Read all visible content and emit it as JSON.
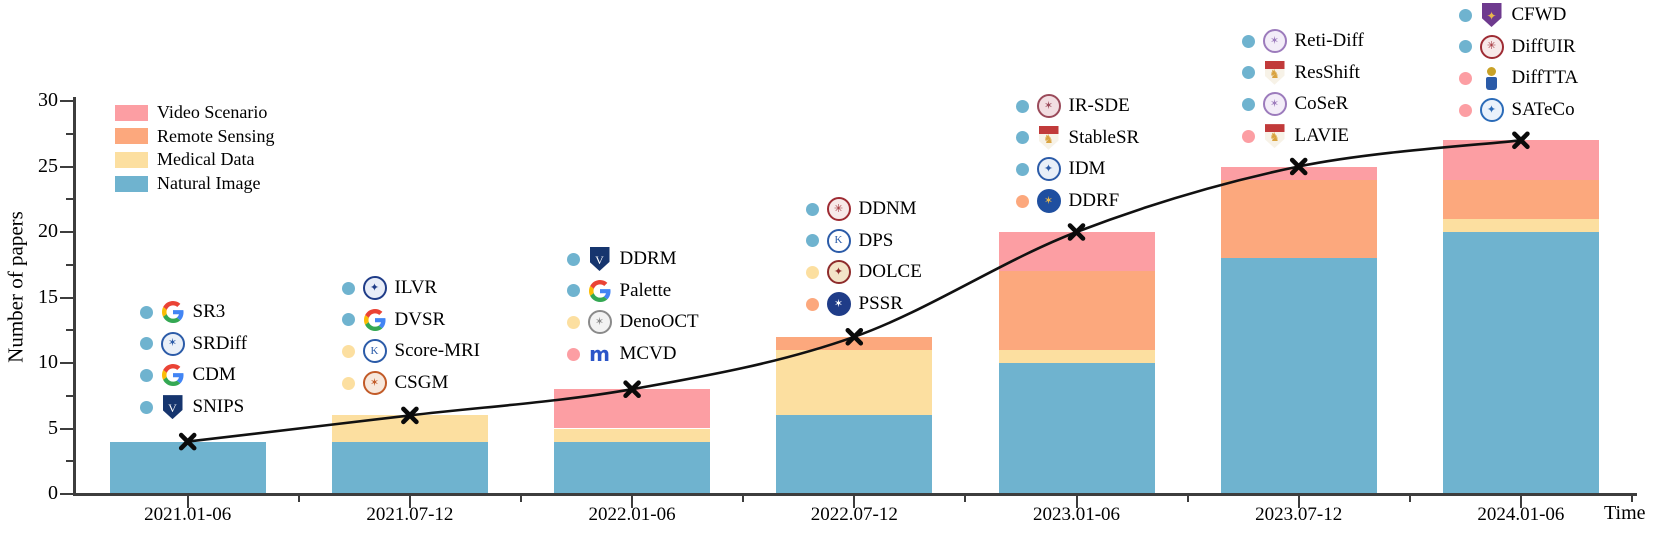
{
  "chart_data": {
    "type": "bar",
    "subtype": "stacked-bars-with-cumulative-line",
    "title": "",
    "xlabel": "Time",
    "ylabel": "Number of papers",
    "ylim": [
      0,
      30
    ],
    "y_major_ticks": [
      0,
      5,
      10,
      15,
      20,
      25,
      30
    ],
    "y_minor_ticks": [
      2.5,
      7.5,
      12.5,
      17.5,
      22.5,
      27.5
    ],
    "grid": "off",
    "legend_position": "top-left-inside",
    "categories": [
      "2021.01-06",
      "2021.07-12",
      "2022.01-06",
      "2022.07-12",
      "2023.01-06",
      "2023.07-12",
      "2024.01-06"
    ],
    "series": [
      {
        "name": "Natural Image",
        "color": "#6FB3CF",
        "values": [
          4,
          4,
          4,
          6,
          10,
          18,
          20
        ]
      },
      {
        "name": "Medical Data",
        "color": "#FCDFA0",
        "values": [
          0,
          2,
          1,
          5,
          1,
          0,
          1
        ]
      },
      {
        "name": "Remote Sensing",
        "color": "#FCA87D",
        "values": [
          0,
          0,
          0,
          1,
          6,
          6,
          3
        ]
      },
      {
        "name": "Video Scenario",
        "color": "#FC9EA3",
        "values": [
          0,
          0,
          3,
          0,
          3,
          1,
          3
        ]
      }
    ],
    "line_totals": [
      4,
      6,
      8,
      12,
      20,
      25,
      27
    ],
    "line_marker": "x",
    "line_color": "#111111",
    "legend": [
      {
        "label": "Video Scenario",
        "color": "#FC9EA3"
      },
      {
        "label": "Remote Sensing",
        "color": "#FCA87D"
      },
      {
        "label": "Medical Data",
        "color": "#FCDFA0"
      },
      {
        "label": "Natural Image",
        "color": "#6FB3CF"
      }
    ],
    "palette": {
      "natural": "#6FB3CF",
      "medical": "#FCDFA0",
      "remote": "#FCA87D",
      "video": "#FC9EA3"
    },
    "annotations": [
      {
        "bar": "2021.01-06",
        "papers": [
          {
            "name": "SR3",
            "category": "natural",
            "logo": {
              "kind": "google"
            }
          },
          {
            "name": "SRDiff",
            "category": "natural",
            "logo": {
              "kind": "seal",
              "ring": "#2B5BA8",
              "bg": "#EAF0F8",
              "glyph": "✶"
            }
          },
          {
            "name": "CDM",
            "category": "natural",
            "logo": {
              "kind": "google"
            }
          },
          {
            "name": "SNIPS",
            "category": "natural",
            "logo": {
              "kind": "shield",
              "top": "#16356E",
              "body": "#16356E",
              "glyph": "V",
              "glyph_color": "#FFFFFF"
            }
          }
        ]
      },
      {
        "bar": "2021.07-12",
        "papers": [
          {
            "name": "ILVR",
            "category": "natural",
            "logo": {
              "kind": "seal",
              "ring": "#1F3C88",
              "bg": "#E8EDF8",
              "glyph": "✦"
            }
          },
          {
            "name": "DVSR",
            "category": "natural",
            "logo": {
              "kind": "google"
            }
          },
          {
            "name": "Score-MRI",
            "category": "medical",
            "logo": {
              "kind": "seal",
              "ring": "#2B5BA8",
              "bg": "#FFFFFF",
              "glyph": "K"
            }
          },
          {
            "name": "CSGM",
            "category": "medical",
            "logo": {
              "kind": "seal",
              "ring": "#C25B28",
              "bg": "#F7E8DC",
              "glyph": "✶"
            }
          }
        ]
      },
      {
        "bar": "2022.01-06",
        "papers": [
          {
            "name": "DDRM",
            "category": "natural",
            "logo": {
              "kind": "shield",
              "top": "#16356E",
              "body": "#16356E",
              "glyph": "V",
              "glyph_color": "#FFFFFF"
            }
          },
          {
            "name": "Palette",
            "category": "natural",
            "logo": {
              "kind": "google"
            }
          },
          {
            "name": "DenoOCT",
            "category": "medical",
            "logo": {
              "kind": "seal",
              "ring": "#8A8A8A",
              "bg": "#F2F2F2",
              "glyph": "✶"
            }
          },
          {
            "name": "MCVD",
            "category": "video",
            "logo": {
              "kind": "mark",
              "color": "#2B55C8",
              "glyph": "m"
            }
          }
        ]
      },
      {
        "bar": "2022.07-12",
        "papers": [
          {
            "name": "DDNM",
            "category": "natural",
            "logo": {
              "kind": "seal",
              "ring": "#9E2B33",
              "bg": "#F7E9E9",
              "glyph": "✳"
            }
          },
          {
            "name": "DPS",
            "category": "natural",
            "logo": {
              "kind": "seal",
              "ring": "#2B5BA8",
              "bg": "#FFFFFF",
              "glyph": "K"
            }
          },
          {
            "name": "DOLCE",
            "category": "medical",
            "logo": {
              "kind": "seal",
              "ring": "#8E2B2B",
              "bg": "#F3E3C8",
              "glyph": "✦"
            }
          },
          {
            "name": "PSSR",
            "category": "remote",
            "logo": {
              "kind": "seal",
              "ring": "#1F3C88",
              "bg": "#1F3C88",
              "glyph": "✶",
              "glyph_color": "#FFFFFF"
            }
          }
        ]
      },
      {
        "bar": "2023.01-06",
        "papers": [
          {
            "name": "IR-SDE",
            "category": "natural",
            "logo": {
              "kind": "seal",
              "ring": "#9A4A5A",
              "bg": "#F2DEE2",
              "glyph": "✶"
            }
          },
          {
            "name": "StableSR",
            "category": "natural",
            "logo": {
              "kind": "shield",
              "top": "#C13A3A",
              "body": "#F7F2E7",
              "glyph": "♞",
              "glyph_color": "#D9A33F"
            }
          },
          {
            "name": "IDM",
            "category": "natural",
            "logo": {
              "kind": "seal",
              "ring": "#2B5BA8",
              "bg": "#E8EFF8",
              "glyph": "✦"
            }
          },
          {
            "name": "DDRF",
            "category": "remote",
            "logo": {
              "kind": "seal",
              "ring": "#1F4FA0",
              "bg": "#1F4FA0",
              "glyph": "✶",
              "glyph_color": "#E8B84B"
            }
          }
        ]
      },
      {
        "bar": "2023.07-12",
        "papers": [
          {
            "name": "Reti-Diff",
            "category": "natural",
            "logo": {
              "kind": "seal",
              "ring": "#9C7BBC",
              "bg": "#F3EDF8",
              "glyph": "✶"
            }
          },
          {
            "name": "ResShift",
            "category": "natural",
            "logo": {
              "kind": "shield",
              "top": "#C13A3A",
              "body": "#F7F2E7",
              "glyph": "♞",
              "glyph_color": "#D9A33F"
            }
          },
          {
            "name": "CoSeR",
            "category": "natural",
            "logo": {
              "kind": "seal",
              "ring": "#9C7BBC",
              "bg": "#F3EDF8",
              "glyph": "✶"
            }
          },
          {
            "name": "LAVIE",
            "category": "video",
            "logo": {
              "kind": "shield",
              "top": "#C13A3A",
              "body": "#F7F2E7",
              "glyph": "♞",
              "glyph_color": "#D9A33F"
            }
          }
        ]
      },
      {
        "bar": "2024.01-06",
        "papers": [
          {
            "name": "CFWD",
            "category": "natural",
            "logo": {
              "kind": "shield",
              "top": "#6E3A8E",
              "body": "#6E3A8E",
              "glyph": "✦",
              "glyph_color": "#E8B84B"
            }
          },
          {
            "name": "DiffUIR",
            "category": "natural",
            "logo": {
              "kind": "seal",
              "ring": "#9E2B33",
              "bg": "#F7E9E9",
              "glyph": "✳"
            }
          },
          {
            "name": "DiffTTA",
            "category": "video",
            "logo": {
              "kind": "column",
              "cap": "#C9A227",
              "body": "#2B5BA8"
            }
          },
          {
            "name": "SATeCo",
            "category": "video",
            "logo": {
              "kind": "seal",
              "ring": "#2B6BB8",
              "bg": "#EAF2FB",
              "glyph": "✦"
            }
          }
        ]
      }
    ]
  },
  "axis_labels": {
    "y": "Number of papers",
    "x_end": "Time"
  }
}
